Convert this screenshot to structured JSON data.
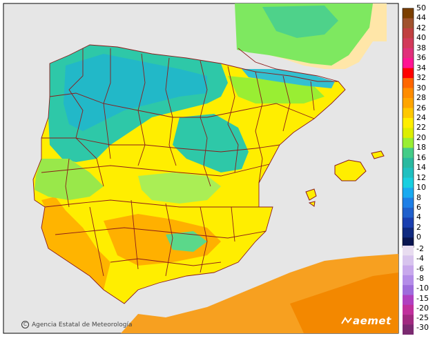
{
  "map": {
    "region": "Iberian Peninsula and Balearic Islands",
    "land_colors": {
      "sea": "#e6e6e6",
      "warm_25_30": "#f7a01a",
      "yellow_22_24": "#ffff00",
      "lime_18_20": "#9be65a",
      "teal_14_16": "#2ec8a8",
      "cyan_12": "#33b5b5",
      "border": "#8b1a1a"
    }
  },
  "legend": {
    "positive_labels": [
      "50",
      "44",
      "42",
      "40",
      "38",
      "36",
      "34",
      "32",
      "30",
      "28",
      "26",
      "24",
      "22",
      "20",
      "18",
      "16",
      "14",
      "12",
      "10",
      "8",
      "6",
      "4",
      "2",
      "0"
    ],
    "positive_colors": [
      "#7b3f00",
      "#a0522d",
      "#c04040",
      "#d23a5a",
      "#e0307a",
      "#ff1493",
      "#ff0000",
      "#ff6600",
      "#ff8c00",
      "#ffa500",
      "#ffc800",
      "#ffee00",
      "#ddee00",
      "#99ee33",
      "#44cc88",
      "#2ab9a0",
      "#20c0c0",
      "#19cfe0",
      "#19aaf0",
      "#1e7fe6",
      "#2060cc",
      "#1a3fb0",
      "#102a80",
      "#0a1550"
    ],
    "negative_labels": [
      "-2",
      "-4",
      "-6",
      "-8",
      "-10",
      "-15",
      "-20",
      "-25",
      "-30"
    ],
    "negative_colors": [
      "#e8dcf0",
      "#d8c4ee",
      "#c8a8ec",
      "#b48ce8",
      "#9e6cdc",
      "#b040c0",
      "#c0309c",
      "#a02a80",
      "#7a2a70"
    ]
  },
  "footer": {
    "credit_symbol": "C",
    "credit_text": "Agencia Estatal de Meteorología",
    "brand": "aemet"
  }
}
